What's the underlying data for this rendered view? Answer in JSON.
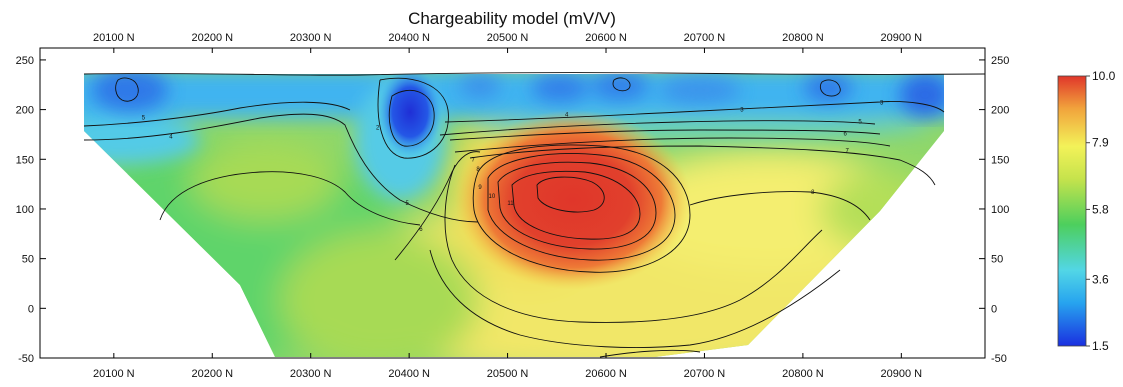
{
  "chart_data": {
    "type": "heatmap",
    "title": "Chargeability model (mV/V)",
    "xlabel": "",
    "ylabel": "",
    "x_ticks": [
      20100,
      20200,
      20300,
      20400,
      20500,
      20600,
      20700,
      20800,
      20900
    ],
    "x_tick_labels": [
      "20100 N",
      "20200 N",
      "20300 N",
      "20400 N",
      "20500 N",
      "20600 N",
      "20700 N",
      "20800 N",
      "20900 N"
    ],
    "xlim": [
      20025,
      20985
    ],
    "y_ticks": [
      250,
      200,
      150,
      100,
      50,
      0,
      -50
    ],
    "y_tick_labels": [
      "250",
      "200",
      "150",
      "100",
      "50",
      "0",
      "-50"
    ],
    "ylim": [
      -50,
      262
    ],
    "colorbar": {
      "min": 1.5,
      "max": 10.0,
      "tick_values": [
        10.0,
        7.9,
        5.8,
        3.6,
        1.5
      ],
      "tick_labels": [
        "10.0",
        "7.9",
        "5.8",
        "3.6",
        "1.5"
      ],
      "colors": [
        "#1a2fe0",
        "#27a4ef",
        "#52d6e6",
        "#4dcf5d",
        "#c6e34c",
        "#f3f259",
        "#f1a33c",
        "#e0362a"
      ]
    },
    "contour_levels": [
      2,
      3,
      4,
      5,
      6,
      7,
      8,
      9,
      10,
      11
    ],
    "contour_labels": [
      {
        "text": "5",
        "x": 20130,
        "y": 190
      },
      {
        "text": "4",
        "x": 20158,
        "y": 171
      },
      {
        "text": "2",
        "x": 20368,
        "y": 180
      },
      {
        "text": "4",
        "x": 20560,
        "y": 193
      },
      {
        "text": "3",
        "x": 20738,
        "y": 198
      },
      {
        "text": "3",
        "x": 20880,
        "y": 205
      },
      {
        "text": "5",
        "x": 20858,
        "y": 186
      },
      {
        "text": "6",
        "x": 20843,
        "y": 174
      },
      {
        "text": "7",
        "x": 20845,
        "y": 157
      },
      {
        "text": "7",
        "x": 20465,
        "y": 148
      },
      {
        "text": "8",
        "x": 20470,
        "y": 138
      },
      {
        "text": "9",
        "x": 20472,
        "y": 120
      },
      {
        "text": "10",
        "x": 20484,
        "y": 111
      },
      {
        "text": "11",
        "x": 20503,
        "y": 104
      },
      {
        "text": "5",
        "x": 20398,
        "y": 104
      },
      {
        "text": "6",
        "x": 20412,
        "y": 78
      },
      {
        "text": "8",
        "x": 20810,
        "y": 115
      }
    ]
  }
}
